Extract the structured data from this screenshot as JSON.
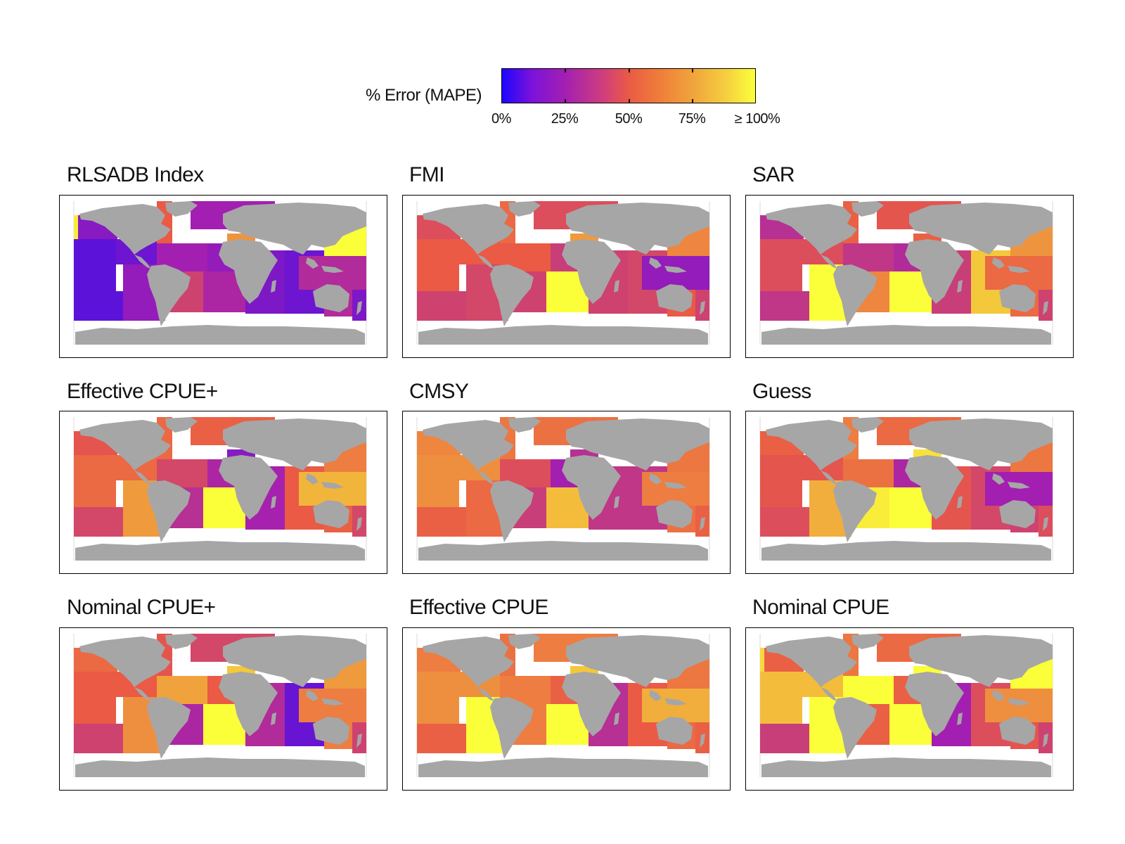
{
  "colorbar": {
    "label": "% Error (MAPE)",
    "ticks": [
      "0%",
      "25%",
      "50%",
      "75%",
      "≥ 100%"
    ],
    "min": 0,
    "max": 100,
    "colors": [
      "#1d06ff",
      "#a31fb1",
      "#ea5a45",
      "#f0a33c",
      "#fbff3a"
    ]
  },
  "land_color": "#a6a6a6",
  "panels": [
    {
      "title": "RLSADB Index",
      "regions": {
        "ne_pacific": 20,
        "nw_pacific_edge": 95,
        "w_central_pacific": 12,
        "e_central_pacific": 15,
        "sw_pacific": 12,
        "se_pacific": 22,
        "nw_atlantic": 50,
        "ne_atlantic": 25,
        "wc_atlantic": 25,
        "ec_atlantic": 22,
        "sw_atlantic": 40,
        "se_atlantic": 28,
        "med": 70,
        "w_indian": 18,
        "e_indian": 15,
        "nw_pacific": 100,
        "wc_pacific": 30,
        "sw_pacific_w": 30,
        "nz": 18
      }
    },
    {
      "title": "FMI",
      "regions": {
        "ne_pacific": 45,
        "nw_pacific_edge": 45,
        "w_central_pacific": 50,
        "e_central_pacific": 50,
        "sw_pacific": 40,
        "se_pacific": 42,
        "nw_atlantic": 55,
        "ne_atlantic": 45,
        "wc_atlantic": 50,
        "ec_atlantic": 38,
        "sw_atlantic": 40,
        "se_atlantic": 100,
        "med": 72,
        "w_indian": 40,
        "e_indian": 42,
        "nw_pacific": 65,
        "wc_pacific": 22,
        "sw_pacific_w": 50,
        "nz": 40
      }
    },
    {
      "title": "SAR",
      "regions": {
        "ne_pacific": 32,
        "nw_pacific_edge": 32,
        "w_central_pacific": 45,
        "e_central_pacific": 45,
        "sw_pacific": 35,
        "se_pacific": 100,
        "nw_atlantic": 52,
        "ne_atlantic": 48,
        "wc_atlantic": 35,
        "ec_atlantic": 30,
        "sw_atlantic": 65,
        "se_atlantic": 100,
        "med": 52,
        "w_indian": 38,
        "e_indian": 85,
        "nw_pacific": 70,
        "wc_pacific": 55,
        "sw_pacific_w": 55,
        "nz": 40
      }
    },
    {
      "title": "Effective CPUE+",
      "regions": {
        "ne_pacific": 48,
        "nw_pacific_edge": 48,
        "w_central_pacific": 55,
        "e_central_pacific": 55,
        "sw_pacific": 42,
        "se_pacific": 72,
        "nw_atlantic": 55,
        "ne_atlantic": 52,
        "wc_atlantic": 42,
        "ec_atlantic": 28,
        "sw_atlantic": 32,
        "se_atlantic": 100,
        "med": 20,
        "w_indian": 26,
        "e_indian": 50,
        "nw_pacific": 62,
        "wc_pacific": 80,
        "sw_pacific_w": 52,
        "nz": 42
      }
    },
    {
      "title": "CMSY",
      "regions": {
        "ne_pacific": 65,
        "nw_pacific_edge": 65,
        "w_central_pacific": 68,
        "e_central_pacific": 68,
        "sw_pacific": 52,
        "se_pacific": 55,
        "nw_atlantic": 60,
        "ne_atlantic": 58,
        "wc_atlantic": 45,
        "ec_atlantic": 25,
        "sw_atlantic": 38,
        "se_atlantic": 82,
        "med": 32,
        "w_indian": 35,
        "e_indian": 35,
        "nw_pacific": 60,
        "wc_pacific": 62,
        "sw_pacific_w": 58,
        "nz": 52
      }
    },
    {
      "title": "Guess",
      "regions": {
        "ne_pacific": 52,
        "nw_pacific_edge": 52,
        "w_central_pacific": 48,
        "e_central_pacific": 48,
        "sw_pacific": 45,
        "se_pacific": 78,
        "nw_atlantic": 62,
        "ne_atlantic": 55,
        "wc_atlantic": 58,
        "ec_atlantic": 28,
        "sw_atlantic": 95,
        "se_atlantic": 100,
        "med": 92,
        "w_indian": 48,
        "e_indian": 42,
        "nw_pacific": 60,
        "wc_pacific": 25,
        "sw_pacific_w": 40,
        "nz": 45
      }
    },
    {
      "title": "Nominal CPUE+",
      "regions": {
        "ne_pacific": 55,
        "nw_pacific_edge": 55,
        "w_central_pacific": 50,
        "e_central_pacific": 50,
        "sw_pacific": 40,
        "se_pacific": 68,
        "nw_atlantic": 48,
        "ne_atlantic": 42,
        "wc_atlantic": 75,
        "ec_atlantic": 50,
        "sw_atlantic": 28,
        "se_atlantic": 100,
        "med": 85,
        "w_indian": 30,
        "e_indian": 14,
        "nw_pacific": 72,
        "wc_pacific": 62,
        "sw_pacific_w": 62,
        "nz": 40
      }
    },
    {
      "title": "Effective CPUE",
      "regions": {
        "ne_pacific": 62,
        "nw_pacific_edge": 62,
        "w_central_pacific": 68,
        "e_central_pacific": 68,
        "sw_pacific": 52,
        "se_pacific": 100,
        "nw_atlantic": 58,
        "ne_atlantic": 62,
        "wc_atlantic": 62,
        "ec_atlantic": 52,
        "sw_atlantic": 62,
        "se_atlantic": 100,
        "med": 85,
        "w_indian": 32,
        "e_indian": 50,
        "nw_pacific": 60,
        "wc_pacific": 78,
        "sw_pacific_w": 55,
        "nz": 52
      }
    },
    {
      "title": "Nominal CPUE",
      "regions": {
        "ne_pacific": 52,
        "nw_pacific_edge": 90,
        "w_central_pacific": 82,
        "e_central_pacific": 82,
        "sw_pacific": 38,
        "se_pacific": 100,
        "nw_atlantic": 60,
        "ne_atlantic": 55,
        "wc_atlantic": 100,
        "ec_atlantic": 52,
        "sw_atlantic": 52,
        "se_atlantic": 100,
        "med": 100,
        "w_indian": 25,
        "e_indian": 45,
        "nw_pacific": 100,
        "wc_pacific": 68,
        "sw_pacific_w": 48,
        "nz": 40
      }
    }
  ]
}
